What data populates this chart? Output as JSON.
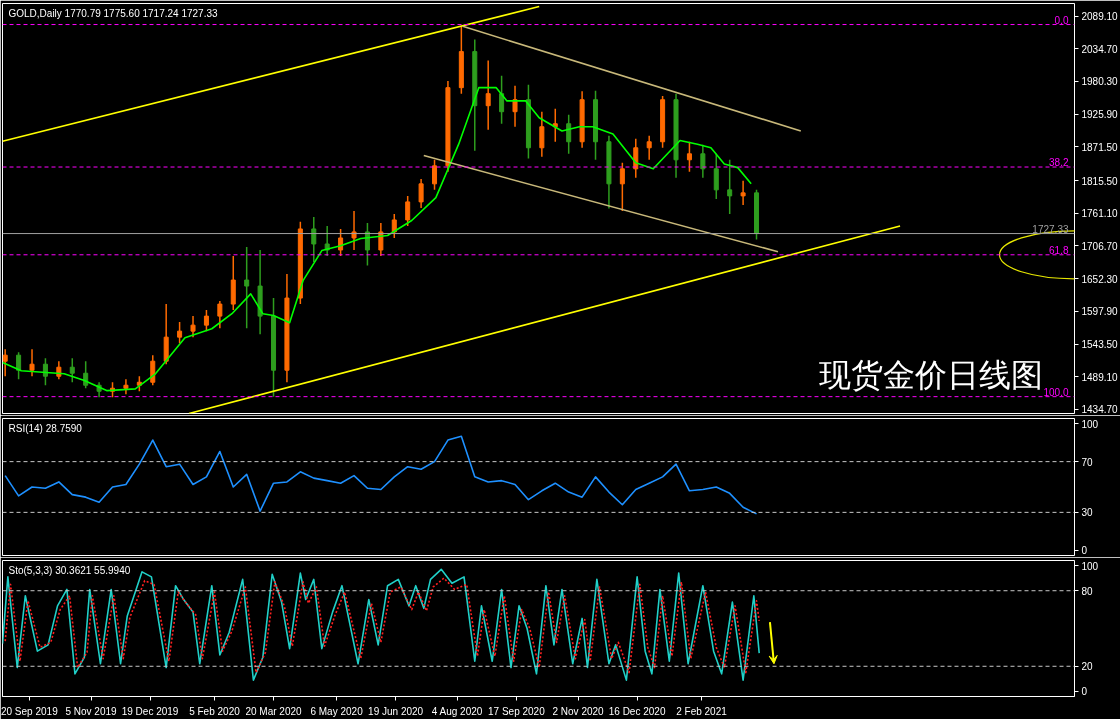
{
  "chart_data": [
    {
      "type": "candlestick",
      "title": "GOLD,Daily  1770.79 1775.60 1717.24 1727.33",
      "x": [
        "2019-09-02",
        "2019-09-12",
        "2019-09-22",
        "2019-10-02",
        "2019-10-12",
        "2019-10-22",
        "2019-11-01",
        "2019-11-11",
        "2019-11-21",
        "2019-12-01",
        "2019-12-11",
        "2019-12-21",
        "2019-12-31",
        "2020-01-10",
        "2020-01-20",
        "2020-01-30",
        "2020-02-09",
        "2020-02-19",
        "2020-02-29",
        "2020-03-10",
        "2020-03-20",
        "2020-03-30",
        "2020-04-09",
        "2020-04-19",
        "2020-04-29",
        "2020-05-09",
        "2020-05-19",
        "2020-05-29",
        "2020-06-08",
        "2020-06-18",
        "2020-06-28",
        "2020-07-08",
        "2020-07-18",
        "2020-07-28",
        "2020-08-07",
        "2020-08-17",
        "2020-08-27",
        "2020-09-06",
        "2020-09-16",
        "2020-09-26",
        "2020-10-06",
        "2020-10-16",
        "2020-10-26",
        "2020-11-05",
        "2020-11-15",
        "2020-11-25",
        "2020-12-05",
        "2020-12-15",
        "2020-12-25",
        "2021-01-04",
        "2021-01-14",
        "2021-01-24",
        "2021-02-03",
        "2021-02-13",
        "2021-02-23",
        "2021-03-05",
        "2021-03-15"
      ],
      "ohlc": [
        [
          1515,
          1535,
          1490,
          1525
        ],
        [
          1525,
          1530,
          1485,
          1500
        ],
        [
          1500,
          1535,
          1490,
          1510
        ],
        [
          1510,
          1520,
          1475,
          1490
        ],
        [
          1490,
          1515,
          1485,
          1505
        ],
        [
          1505,
          1520,
          1480,
          1495
        ],
        [
          1495,
          1515,
          1470,
          1475
        ],
        [
          1475,
          1480,
          1455,
          1465
        ],
        [
          1465,
          1480,
          1455,
          1470
        ],
        [
          1470,
          1485,
          1460,
          1475
        ],
        [
          1475,
          1490,
          1465,
          1480
        ],
        [
          1480,
          1525,
          1475,
          1515
        ],
        [
          1515,
          1610,
          1510,
          1555
        ],
        [
          1555,
          1580,
          1545,
          1565
        ],
        [
          1565,
          1590,
          1555,
          1575
        ],
        [
          1575,
          1600,
          1565,
          1590
        ],
        [
          1590,
          1615,
          1570,
          1610
        ],
        [
          1610,
          1690,
          1600,
          1650
        ],
        [
          1650,
          1705,
          1570,
          1640
        ],
        [
          1640,
          1700,
          1560,
          1590
        ],
        [
          1590,
          1620,
          1456,
          1500
        ],
        [
          1500,
          1660,
          1480,
          1620
        ],
        [
          1620,
          1747,
          1610,
          1735
        ],
        [
          1735,
          1755,
          1680,
          1710
        ],
        [
          1710,
          1740,
          1690,
          1700
        ],
        [
          1700,
          1735,
          1690,
          1720
        ],
        [
          1720,
          1765,
          1700,
          1730
        ],
        [
          1730,
          1745,
          1674,
          1700
        ],
        [
          1700,
          1745,
          1690,
          1730
        ],
        [
          1730,
          1760,
          1720,
          1750
        ],
        [
          1750,
          1790,
          1740,
          1780
        ],
        [
          1780,
          1818,
          1770,
          1810
        ],
        [
          1810,
          1850,
          1800,
          1840
        ],
        [
          1840,
          1981,
          1830,
          1970
        ],
        [
          1970,
          2072,
          1960,
          2030
        ],
        [
          2030,
          2050,
          1865,
          1940
        ],
        [
          1940,
          2015,
          1900,
          1960
        ],
        [
          1960,
          1990,
          1910,
          1930
        ],
        [
          1930,
          1973,
          1905,
          1950
        ],
        [
          1950,
          1975,
          1852,
          1870
        ],
        [
          1870,
          1930,
          1855,
          1905
        ],
        [
          1905,
          1935,
          1880,
          1910
        ],
        [
          1910,
          1925,
          1860,
          1880
        ],
        [
          1880,
          1964,
          1870,
          1950
        ],
        [
          1950,
          1965,
          1850,
          1880
        ],
        [
          1880,
          1890,
          1769,
          1810
        ],
        [
          1810,
          1845,
          1765,
          1835
        ],
        [
          1835,
          1885,
          1820,
          1870
        ],
        [
          1870,
          1890,
          1850,
          1880
        ],
        [
          1880,
          1956,
          1870,
          1950
        ],
        [
          1950,
          1960,
          1820,
          1850
        ],
        [
          1850,
          1880,
          1830,
          1860
        ],
        [
          1860,
          1875,
          1820,
          1835
        ],
        [
          1835,
          1860,
          1785,
          1800
        ],
        [
          1800,
          1850,
          1760,
          1790
        ],
        [
          1790,
          1815,
          1775,
          1795
        ],
        [
          1795,
          1800,
          1717.24,
          1727.33
        ]
      ],
      "colors": [
        "#ff6a00",
        "#2e9e1e",
        "#ff6a00",
        "#2e9e1e",
        "#ff6a00",
        "#2e9e1e",
        "#2e9e1e",
        "#2e9e1e",
        "#ff6a00",
        "#ff6a00",
        "#ff6a00",
        "#ff6a00",
        "#ff6a00",
        "#ff6a00",
        "#ff6a00",
        "#ff6a00",
        "#ff6a00",
        "#ff6a00",
        "#2e9e1e",
        "#2e9e1e",
        "#2e9e1e",
        "#ff6a00",
        "#ff6a00",
        "#2e9e1e",
        "#2e9e1e",
        "#ff6a00",
        "#ff6a00",
        "#2e9e1e",
        "#ff6a00",
        "#ff6a00",
        "#ff6a00",
        "#ff6a00",
        "#ff6a00",
        "#ff6a00",
        "#ff6a00",
        "#2e9e1e",
        "#ff6a00",
        "#2e9e1e",
        "#ff6a00",
        "#2e9e1e",
        "#ff6a00",
        "#ff6a00",
        "#2e9e1e",
        "#ff6a00",
        "#2e9e1e",
        "#2e9e1e",
        "#ff6a00",
        "#ff6a00",
        "#ff6a00",
        "#ff6a00",
        "#2e9e1e",
        "#ff6a00",
        "#2e9e1e",
        "#2e9e1e",
        "#2e9e1e",
        "#ff6a00",
        "#2e9e1e"
      ],
      "series": [
        {
          "type": "line",
          "color": "#00ff00",
          "x": [
            "2019-08-31",
            "2019-09-14",
            "2019-10-16",
            "2019-10-31",
            "2019-11-17",
            "2019-12-08",
            "2019-12-23",
            "2020-01-14",
            "2020-02-03",
            "2020-02-18",
            "2020-03-03",
            "2020-03-12",
            "2020-03-20",
            "2020-04-01",
            "2020-04-11",
            "2020-04-25",
            "2020-05-09",
            "2020-05-24",
            "2020-06-13",
            "2020-07-01",
            "2020-07-19",
            "2020-08-05",
            "2020-08-20",
            "2020-09-02",
            "2020-09-10",
            "2020-09-24",
            "2020-10-04",
            "2020-10-21",
            "2020-11-03",
            "2020-11-13",
            "2020-11-28",
            "2020-12-15",
            "2020-12-28",
            "2021-01-17",
            "2021-01-30",
            "2021-02-09",
            "2021-02-19",
            "2021-03-01",
            "2021-03-11"
          ],
          "values": [
            1513,
            1499,
            1494,
            1483,
            1466,
            1469,
            1494,
            1554,
            1569,
            1594,
            1627,
            1594,
            1591,
            1579,
            1649,
            1699,
            1707,
            1719,
            1724,
            1749,
            1787,
            1876,
            1970,
            1970,
            1948,
            1948,
            1920,
            1898,
            1905,
            1905,
            1893,
            1845,
            1835,
            1882,
            1876,
            1870,
            1843,
            1837,
            1810
          ]
        },
        {
          "type": "line",
          "color": "#ffff00",
          "x": [
            "2019-08-31",
            "2020-10-04"
          ],
          "values": [
            1881,
            2105
          ]
        },
        {
          "type": "line",
          "color": "#ffff00",
          "x": [
            "2020-01-17",
            "2021-06-30"
          ],
          "values": [
            1428,
            1740
          ]
        },
        {
          "type": "line",
          "color": "#c8b87a",
          "x": [
            "2020-08-08",
            "2021-04-17"
          ],
          "values": [
            2072,
            1898
          ]
        },
        {
          "type": "line",
          "color": "#c8b87a",
          "x": [
            "2020-07-10",
            "2021-03-31"
          ],
          "values": [
            1857,
            1697
          ]
        }
      ],
      "ref_lines": [
        {
          "axis": "y",
          "value": 2075,
          "color": "#ff00ff",
          "line_style": "dashed"
        },
        {
          "axis": "y",
          "value": 1838,
          "color": "#ff00ff",
          "line_style": "dashed"
        },
        {
          "axis": "y",
          "value": 1692,
          "color": "#ff00ff",
          "line_style": "dashed"
        },
        {
          "axis": "y",
          "value": 1456,
          "color": "#ff00ff",
          "line_style": "dashed"
        },
        {
          "axis": "y",
          "value": 1727.33,
          "label": "1727.33",
          "color": "#a0a0a0",
          "line_style": "solid"
        }
      ],
      "annotations": [
        "现货金价日线图",
        {
          "text": "0.0",
          "y": 2075
        },
        {
          "text": "38.2",
          "y": 1838
        },
        {
          "text": "61.8",
          "y": 1692
        },
        {
          "text": "100.0",
          "y": 1456
        }
      ],
      "xlim": [
        "2019-08-31",
        "2021-11-07"
      ],
      "ylim": [
        1428,
        2110
      ],
      "yticks": [
        {
          "value": 1434.7,
          "label": "1434.70"
        },
        {
          "value": 1489.1,
          "label": "1489.10"
        },
        {
          "value": 1543.5,
          "label": "1543.50"
        },
        {
          "value": 1597.9,
          "label": "1597.90"
        },
        {
          "value": 1652.3,
          "label": "1652.30"
        },
        {
          "value": 1706.7,
          "label": "1706.70"
        },
        {
          "value": 1761.1,
          "label": "1761.10"
        },
        {
          "value": 1815.5,
          "label": "1815.50"
        },
        {
          "value": 1871.5,
          "label": "1871.50"
        },
        {
          "value": 1925.9,
          "label": "1925.90"
        },
        {
          "value": 1980.3,
          "label": "1980.30"
        },
        {
          "value": 2034.7,
          "label": "2034.70"
        },
        {
          "value": 2089.1,
          "label": "2089.10"
        }
      ],
      "tick_labels": "y"
    },
    {
      "type": "line",
      "title": "RSI(14) 28.7590",
      "series": [
        {
          "color": "#1e90ff",
          "x": [
            "2019-09-02",
            "2019-09-12",
            "2019-09-22",
            "2019-10-02",
            "2019-10-12",
            "2019-10-22",
            "2019-11-01",
            "2019-11-11",
            "2019-11-21",
            "2019-12-01",
            "2019-12-11",
            "2019-12-21",
            "2019-12-31",
            "2020-01-10",
            "2020-01-20",
            "2020-01-30",
            "2020-02-09",
            "2020-02-19",
            "2020-02-29",
            "2020-03-10",
            "2020-03-20",
            "2020-03-30",
            "2020-04-09",
            "2020-04-19",
            "2020-04-29",
            "2020-05-09",
            "2020-05-19",
            "2020-05-29",
            "2020-06-08",
            "2020-06-18",
            "2020-06-28",
            "2020-07-08",
            "2020-07-18",
            "2020-07-28",
            "2020-08-07",
            "2020-08-17",
            "2020-08-27",
            "2020-09-06",
            "2020-09-16",
            "2020-09-26",
            "2020-10-06",
            "2020-10-16",
            "2020-10-26",
            "2020-11-05",
            "2020-11-15",
            "2020-11-25",
            "2020-12-05",
            "2020-12-15",
            "2020-12-25",
            "2021-01-04",
            "2021-01-14",
            "2021-01-24",
            "2021-02-03",
            "2021-02-13",
            "2021-02-23",
            "2021-03-05",
            "2021-03-15"
          ],
          "values": [
            59,
            43,
            50,
            49,
            54,
            44,
            42,
            38,
            50,
            52,
            68,
            87,
            66,
            68,
            52,
            58,
            78,
            50,
            60,
            31,
            53,
            54,
            62,
            57,
            55,
            53,
            59,
            49,
            48,
            58,
            66,
            64,
            70,
            87,
            90,
            58,
            54,
            55,
            52,
            40,
            47,
            53,
            46,
            42,
            58,
            46,
            36,
            48,
            53,
            58,
            68,
            47,
            48,
            50,
            45,
            34,
            28.8
          ]
        }
      ],
      "ref_lines": [
        {
          "axis": "y",
          "value": 30,
          "color": "#c8c8c8",
          "line_style": "dashed"
        },
        {
          "axis": "y",
          "value": 70,
          "color": "#c8c8c8",
          "line_style": "dashed"
        }
      ],
      "xlim": [
        "2019-08-31",
        "2021-11-07"
      ],
      "ylim": [
        -4,
        104
      ],
      "yticks": [
        0,
        30,
        70,
        100
      ],
      "tick_labels": "y"
    },
    {
      "type": "line",
      "title": "Sto(5,3,3) 30.3621 55.9940",
      "series": [
        {
          "color": "#20d0c8",
          "line_style": "solid",
          "x": [
            "2019-08-31",
            "2019-09-04",
            "2019-09-11",
            "2019-09-17",
            "2019-09-26",
            "2019-10-04",
            "2019-10-11",
            "2019-10-18",
            "2019-10-24",
            "2019-10-31",
            "2019-11-04",
            "2019-11-12",
            "2019-11-20",
            "2019-11-27",
            "2019-12-02",
            "2019-12-13",
            "2019-12-20",
            "2019-12-31",
            "2020-01-07",
            "2020-01-13",
            "2020-01-20",
            "2020-01-25",
            "2020-02-03",
            "2020-02-09",
            "2020-02-16",
            "2020-02-26",
            "2020-03-05",
            "2020-03-12",
            "2020-03-19",
            "2020-03-26",
            "2020-04-01",
            "2020-04-09",
            "2020-04-13",
            "2020-04-19",
            "2020-04-25",
            "2020-05-03",
            "2020-05-10",
            "2020-05-22",
            "2020-05-30",
            "2020-06-06",
            "2020-06-13",
            "2020-06-21",
            "2020-06-29",
            "2020-07-04",
            "2020-07-10",
            "2020-07-15",
            "2020-07-23",
            "2020-07-31",
            "2020-08-09",
            "2020-08-17",
            "2020-08-22",
            "2020-08-30",
            "2020-09-06",
            "2020-09-13",
            "2020-09-19",
            "2020-09-25",
            "2020-10-02",
            "2020-10-09",
            "2020-10-15",
            "2020-10-21",
            "2020-10-29",
            "2020-11-05",
            "2020-11-09",
            "2020-11-16",
            "2020-11-25",
            "2020-11-30",
            "2020-12-08",
            "2020-12-16",
            "2020-12-22",
            "2020-12-27",
            "2021-01-02",
            "2021-01-09",
            "2021-01-16",
            "2021-01-23",
            "2021-02-03",
            "2021-02-11",
            "2021-02-17",
            "2021-02-25",
            "2021-03-05",
            "2021-03-13",
            "2021-03-17"
          ],
          "values": [
            38,
            91,
            19,
            76,
            32,
            37,
            68,
            81,
            14,
            27,
            81,
            22,
            81,
            22,
            60,
            95,
            91,
            19,
            84,
            73,
            63,
            22,
            84,
            29,
            47,
            89,
            9,
            27,
            93,
            71,
            34,
            94,
            73,
            89,
            34,
            63,
            84,
            22,
            73,
            37,
            84,
            89,
            68,
            84,
            66,
            89,
            97,
            86,
            91,
            24,
            68,
            24,
            81,
            19,
            68,
            50,
            14,
            84,
            37,
            81,
            22,
            58,
            19,
            89,
            22,
            37,
            9,
            91,
            32,
            14,
            81,
            24,
            94,
            22,
            84,
            32,
            14,
            71,
            9,
            76,
            30.4
          ]
        },
        {
          "color": "#ff2020",
          "line_style": "dotted",
          "x": [
            "2019-09-02",
            "2019-09-06",
            "2019-09-13",
            "2019-09-19",
            "2019-09-28",
            "2019-10-06",
            "2019-10-13",
            "2019-10-20",
            "2019-10-26",
            "2019-11-02",
            "2019-11-06",
            "2019-11-14",
            "2019-11-22",
            "2019-11-29",
            "2019-12-04",
            "2019-12-15",
            "2019-12-22",
            "2020-01-02",
            "2020-01-09",
            "2020-01-15",
            "2020-01-22",
            "2020-01-27",
            "2020-02-05",
            "2020-02-11",
            "2020-02-18",
            "2020-02-28",
            "2020-03-07",
            "2020-03-14",
            "2020-03-21",
            "2020-03-28",
            "2020-04-03",
            "2020-04-11",
            "2020-04-15",
            "2020-04-21",
            "2020-04-27",
            "2020-05-05",
            "2020-05-12",
            "2020-05-24",
            "2020-06-01",
            "2020-06-08",
            "2020-06-15",
            "2020-06-23",
            "2020-07-01",
            "2020-07-06",
            "2020-07-12",
            "2020-07-17",
            "2020-07-25",
            "2020-08-02",
            "2020-08-11",
            "2020-08-19",
            "2020-08-24",
            "2020-09-01",
            "2020-09-08",
            "2020-09-15",
            "2020-09-21",
            "2020-09-27",
            "2020-10-04",
            "2020-10-11",
            "2020-10-17",
            "2020-10-23",
            "2020-10-31",
            "2020-11-07",
            "2020-11-11",
            "2020-11-18",
            "2020-11-27",
            "2020-12-02",
            "2020-12-10",
            "2020-12-18",
            "2020-12-24",
            "2020-12-29",
            "2021-01-04",
            "2021-01-11",
            "2021-01-18",
            "2021-01-25",
            "2021-02-05",
            "2021-02-13",
            "2021-02-19",
            "2021-02-27",
            "2021-03-07",
            "2021-03-15",
            "2021-03-17"
          ],
          "values": [
            40,
            85,
            24,
            72,
            35,
            39,
            65,
            76,
            19,
            31,
            76,
            26,
            76,
            26,
            59,
            88,
            85,
            24,
            79,
            70,
            61,
            26,
            79,
            32,
            48,
            83,
            15,
            31,
            87,
            68,
            36,
            87,
            70,
            83,
            36,
            61,
            79,
            26,
            70,
            39,
            79,
            83,
            65,
            79,
            64,
            83,
            90,
            81,
            85,
            28,
            65,
            28,
            76,
            24,
            65,
            50,
            19,
            79,
            39,
            76,
            26,
            57,
            24,
            83,
            26,
            39,
            15,
            85,
            35,
            19,
            76,
            28,
            87,
            26,
            79,
            35,
            19,
            68,
            15,
            72,
            56.0
          ]
        }
      ],
      "ref_lines": [
        {
          "axis": "y",
          "value": 20,
          "color": "#c8c8c8",
          "line_style": "dashed"
        },
        {
          "axis": "y",
          "value": 80,
          "color": "#c8c8c8",
          "line_style": "dashed"
        }
      ],
      "xlim": [
        "2019-08-31",
        "2021-11-07"
      ],
      "ylim": [
        -4,
        104
      ],
      "yticks": [
        0,
        20,
        80,
        100
      ],
      "xticks": [
        {
          "value": "2019-09-20",
          "label": "20 Sep 2019"
        },
        {
          "value": "2019-11-05",
          "label": "5 Nov 2019"
        },
        {
          "value": "2019-12-19",
          "label": "19 Dec 2019"
        },
        {
          "value": "2020-02-05",
          "label": "5 Feb 2020"
        },
        {
          "value": "2020-03-20",
          "label": "20 Mar 2020"
        },
        {
          "value": "2020-05-06",
          "label": "6 May 2020"
        },
        {
          "value": "2020-06-19",
          "label": "19 Jun 2020"
        },
        {
          "value": "2020-08-04",
          "label": "4 Aug 2020"
        },
        {
          "value": "2020-09-17",
          "label": "17 Sep 2020"
        },
        {
          "value": "2020-11-02",
          "label": "2 Nov 2020"
        },
        {
          "value": "2020-12-16",
          "label": "16 Dec 2020"
        },
        {
          "value": "2021-02-02",
          "label": "2 Feb 2021"
        }
      ]
    }
  ]
}
